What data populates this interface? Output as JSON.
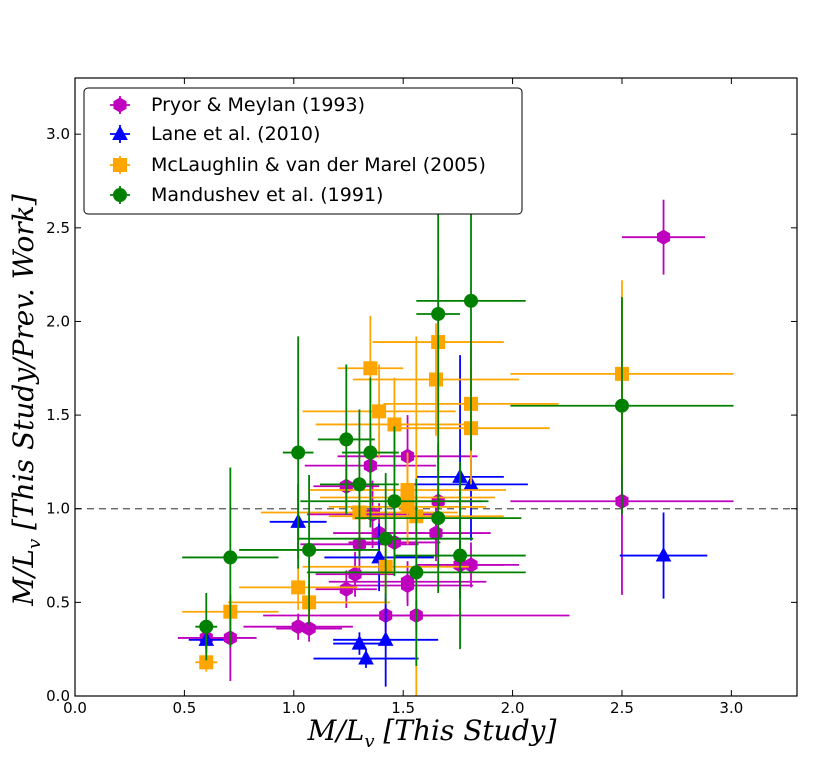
{
  "chart_data": {
    "type": "scatter",
    "title": "",
    "xlabel": "M/L_v [This Study]",
    "ylabel": "M/L_v [This Study/Prev. Work]",
    "xlabel_parts": [
      "M/L",
      "v",
      " [This Study]"
    ],
    "ylabel_parts": [
      "M/L",
      "v",
      " [This Study/Prev. Work]"
    ],
    "xlim": [
      0.0,
      3.3
    ],
    "ylim": [
      0.0,
      3.3
    ],
    "xticks": [
      "0.0",
      "0.5",
      "1.0",
      "1.5",
      "2.0",
      "2.5",
      "3.0"
    ],
    "yticks": [
      "0.0",
      "0.5",
      "1.0",
      "1.5",
      "2.0",
      "2.5",
      "3.0"
    ],
    "reference_line": 1.0,
    "legend_position": "top-left",
    "series": [
      {
        "name": "Pryor & Meylan (1993)",
        "color": "#bf00bf",
        "marker": "hexagon",
        "points": [
          {
            "x": 0.6,
            "y": 0.31,
            "xerr": 0.13,
            "yerr": 0.06
          },
          {
            "x": 0.71,
            "y": 0.31,
            "xerr": 0.12,
            "yerr": 0.23
          },
          {
            "x": 1.02,
            "y": 0.37,
            "xerr": 0.25,
            "yerr": 0.07
          },
          {
            "x": 1.07,
            "y": 0.36,
            "xerr": 0.15,
            "yerr": 0.07
          },
          {
            "x": 1.24,
            "y": 0.57,
            "xerr": 0.14,
            "yerr": 0.1
          },
          {
            "x": 1.24,
            "y": 1.12,
            "xerr": 0.15,
            "yerr": 0.13
          },
          {
            "x": 1.28,
            "y": 0.65,
            "xerr": 0.18,
            "yerr": 0.12
          },
          {
            "x": 1.3,
            "y": 0.81,
            "xerr": 0.27,
            "yerr": 0.15
          },
          {
            "x": 1.35,
            "y": 1.23,
            "xerr": 0.3,
            "yerr": 0.2
          },
          {
            "x": 1.36,
            "y": 0.97,
            "xerr": 0.3,
            "yerr": 0.18
          },
          {
            "x": 1.39,
            "y": 0.87,
            "xerr": 0.21,
            "yerr": 0.16
          },
          {
            "x": 1.42,
            "y": 0.43,
            "xerr": 0.3,
            "yerr": 0.09
          },
          {
            "x": 1.46,
            "y": 0.82,
            "xerr": 0.21,
            "yerr": 0.15
          },
          {
            "x": 1.52,
            "y": 1.28,
            "xerr": 0.32,
            "yerr": 0.22
          },
          {
            "x": 1.52,
            "y": 0.61,
            "xerr": 0.36,
            "yerr": 0.11
          },
          {
            "x": 1.52,
            "y": 0.59,
            "xerr": 0.3,
            "yerr": 0.11
          },
          {
            "x": 1.56,
            "y": 0.43,
            "xerr": 0.7,
            "yerr": 0.08
          },
          {
            "x": 1.65,
            "y": 0.87,
            "xerr": 0.25,
            "yerr": 0.15
          },
          {
            "x": 1.66,
            "y": 1.04,
            "xerr": 0.2,
            "yerr": 0.3
          },
          {
            "x": 1.76,
            "y": 0.7,
            "xerr": 0.2,
            "yerr": 0.12
          },
          {
            "x": 1.81,
            "y": 0.7,
            "xerr": 0.22,
            "yerr": 0.12
          },
          {
            "x": 2.5,
            "y": 1.04,
            "xerr": 0.51,
            "yerr": 0.5
          },
          {
            "x": 2.69,
            "y": 2.45,
            "xerr": 0.19,
            "yerr": 0.2
          }
        ]
      },
      {
        "name": "Lane et al. (2010)",
        "color": "#0000ff",
        "marker": "triangle",
        "points": [
          {
            "x": 0.6,
            "y": 0.3,
            "xerr": 0.08,
            "yerr": 0.07
          },
          {
            "x": 1.02,
            "y": 0.93,
            "xerr": 0.13,
            "yerr": 0.2
          },
          {
            "x": 1.3,
            "y": 0.28,
            "xerr": 0.12,
            "yerr": 0.06
          },
          {
            "x": 1.33,
            "y": 0.2,
            "xerr": 0.24,
            "yerr": 0.05
          },
          {
            "x": 1.39,
            "y": 0.74,
            "xerr": 0.25,
            "yerr": 0.18
          },
          {
            "x": 1.42,
            "y": 0.3,
            "xerr": 0.24,
            "yerr": 0.25
          },
          {
            "x": 1.76,
            "y": 1.17,
            "xerr": 0.2,
            "yerr": 0.65
          },
          {
            "x": 1.81,
            "y": 1.13,
            "xerr": 0.26,
            "yerr": 0.3
          },
          {
            "x": 2.69,
            "y": 0.75,
            "xerr": 0.2,
            "yerr": 0.23
          }
        ]
      },
      {
        "name": "McLaughlin & van der Marel (2005)",
        "color": "#ffa500",
        "marker": "square",
        "points": [
          {
            "x": 0.6,
            "y": 0.18,
            "xerr": 0.05,
            "yerr": 0.05
          },
          {
            "x": 0.71,
            "y": 0.45,
            "xerr": 0.22,
            "yerr": 0.08
          },
          {
            "x": 1.02,
            "y": 0.58,
            "xerr": 0.27,
            "yerr": 0.12
          },
          {
            "x": 1.07,
            "y": 0.5,
            "xerr": 0.37,
            "yerr": 0.1
          },
          {
            "x": 1.3,
            "y": 0.98,
            "xerr": 0.45,
            "yerr": 0.15
          },
          {
            "x": 1.35,
            "y": 1.75,
            "xerr": 0.15,
            "yerr": 0.28
          },
          {
            "x": 1.39,
            "y": 1.52,
            "xerr": 0.35,
            "yerr": 0.25
          },
          {
            "x": 1.42,
            "y": 0.69,
            "xerr": 0.38,
            "yerr": 0.15
          },
          {
            "x": 1.46,
            "y": 1.45,
            "xerr": 0.36,
            "yerr": 0.25
          },
          {
            "x": 1.52,
            "y": 1.1,
            "xerr": 0.45,
            "yerr": 0.2
          },
          {
            "x": 1.52,
            "y": 1.06,
            "xerr": 0.4,
            "yerr": 0.18
          },
          {
            "x": 1.52,
            "y": 1.01,
            "xerr": 0.36,
            "yerr": 0.2
          },
          {
            "x": 1.56,
            "y": 0.96,
            "xerr": 0.4,
            "yerr": 0.96
          },
          {
            "x": 1.65,
            "y": 1.69,
            "xerr": 0.38,
            "yerr": 0.3
          },
          {
            "x": 1.66,
            "y": 1.89,
            "xerr": 0.3,
            "yerr": 0.35
          },
          {
            "x": 1.81,
            "y": 1.56,
            "xerr": 0.4,
            "yerr": 0.3
          },
          {
            "x": 1.81,
            "y": 1.43,
            "xerr": 0.36,
            "yerr": 0.3
          },
          {
            "x": 2.5,
            "y": 1.72,
            "xerr": 0.51,
            "yerr": 0.5
          }
        ]
      },
      {
        "name": "Mandushev et al. (1991)",
        "color": "#008000",
        "marker": "circle",
        "points": [
          {
            "x": 0.6,
            "y": 0.37,
            "xerr": 0.05,
            "yerr": 0.18
          },
          {
            "x": 0.71,
            "y": 0.74,
            "xerr": 0.22,
            "yerr": 0.48
          },
          {
            "x": 1.02,
            "y": 1.3,
            "xerr": 0.07,
            "yerr": 0.62
          },
          {
            "x": 1.07,
            "y": 0.78,
            "xerr": 0.32,
            "yerr": 0.4
          },
          {
            "x": 1.24,
            "y": 1.37,
            "xerr": 0.13,
            "yerr": 0.4
          },
          {
            "x": 1.3,
            "y": 1.13,
            "xerr": 0.18,
            "yerr": 0.4
          },
          {
            "x": 1.35,
            "y": 1.3,
            "xerr": 0.13,
            "yerr": 0.4
          },
          {
            "x": 1.42,
            "y": 0.84,
            "xerr": 0.4,
            "yerr": 0.35
          },
          {
            "x": 1.46,
            "y": 1.04,
            "xerr": 0.43,
            "yerr": 0.4
          },
          {
            "x": 1.56,
            "y": 0.66,
            "xerr": 0.5,
            "yerr": 0.5
          },
          {
            "x": 1.66,
            "y": 2.04,
            "xerr": 0.1,
            "yerr": 0.7
          },
          {
            "x": 1.66,
            "y": 0.95,
            "xerr": 0.38,
            "yerr": 0.4
          },
          {
            "x": 1.76,
            "y": 0.75,
            "xerr": 0.3,
            "yerr": 0.5
          },
          {
            "x": 1.81,
            "y": 2.11,
            "xerr": 0.25,
            "yerr": 0.8
          },
          {
            "x": 2.5,
            "y": 1.55,
            "xerr": 0.51,
            "yerr": 0.58
          }
        ]
      }
    ]
  }
}
